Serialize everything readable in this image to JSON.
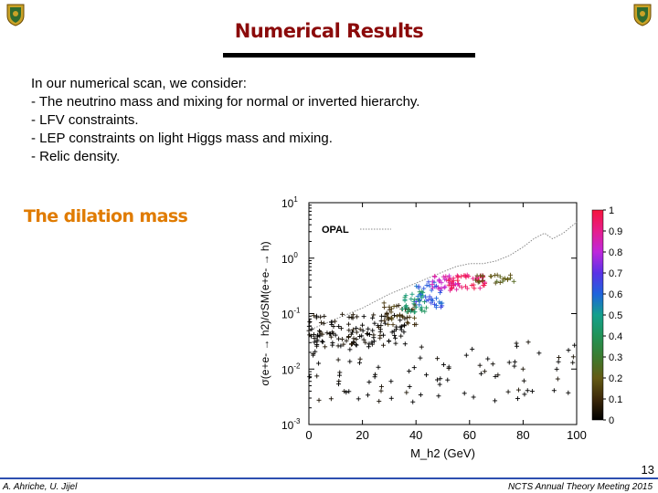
{
  "header": {
    "title": "Numerical Results"
  },
  "body": {
    "lines": [
      "In our numerical scan, we consider:",
      "- The neutrino mass and mixing for normal or inverted hierarchy.",
      "- LFV constraints.",
      "- LEP constraints on light Higgs mass and mixing.",
      "- Relic density."
    ],
    "subtitle": "The dilation mass"
  },
  "chart_data": {
    "type": "scatter",
    "xlabel": "M_h2 (GeV)",
    "ylabel": "σ(e+e- → h2)/σSM(e+e- → h)",
    "xlim": [
      0,
      100
    ],
    "ylim_log10": [
      -3,
      1
    ],
    "x_ticks": [
      "0",
      "20",
      "40",
      "60",
      "80",
      "100"
    ],
    "y_ticks": [
      "10^-3",
      "10^-2",
      "10^-1",
      "10^0",
      "10^1"
    ],
    "y_tick_values": [
      -3,
      -2,
      -1,
      0,
      1
    ],
    "legend": "OPAL",
    "colorbar_range": [
      0,
      1
    ],
    "colorbar_ticks": [
      "0",
      "0.1",
      "0.2",
      "0.3",
      "0.4",
      "0.5",
      "0.6",
      "0.7",
      "0.8",
      "0.9",
      "1"
    ],
    "opal_curve": {
      "x": [
        0,
        10,
        20,
        30,
        40,
        50,
        55,
        60,
        65,
        70,
        75,
        80,
        84,
        88,
        91,
        95,
        100
      ],
      "log10y": [
        -1.3,
        -1.1,
        -0.9,
        -0.65,
        -0.45,
        -0.25,
        -0.15,
        -0.1,
        -0.1,
        -0.05,
        0.05,
        0.2,
        0.35,
        0.45,
        0.35,
        0.45,
        0.65
      ]
    },
    "cluster_regions": [
      {
        "x_range": [
          0,
          36
        ],
        "log10y_range": [
          -1.6,
          -1.0
        ],
        "color_value": 0.02
      },
      {
        "x_range": [
          28,
          40
        ],
        "log10y_range": [
          -1.2,
          -0.8
        ],
        "color_value": 0.12
      },
      {
        "x_range": [
          35,
          44
        ],
        "log10y_range": [
          -1.0,
          -0.6
        ],
        "color_value": 0.45
      },
      {
        "x_range": [
          40,
          50
        ],
        "log10y_range": [
          -0.9,
          -0.4
        ],
        "color_value": 0.62
      },
      {
        "x_range": [
          46,
          56
        ],
        "log10y_range": [
          -0.6,
          -0.3
        ],
        "color_value": 0.85
      },
      {
        "x_range": [
          52,
          66
        ],
        "log10y_range": [
          -0.55,
          -0.3
        ],
        "color_value": 0.95
      },
      {
        "x_range": [
          62,
          78
        ],
        "log10y_range": [
          -0.45,
          -0.3
        ],
        "color_value": 0.2
      },
      {
        "x_range": [
          0,
          100
        ],
        "log10y_range": [
          -2.6,
          -1.5
        ],
        "color_value": 0.0
      }
    ]
  },
  "footer": {
    "page_number": "13",
    "left_text": "A. Ahriche, U. Jijel",
    "right_text": "NCTS Annual Theory Meeting 2015"
  }
}
